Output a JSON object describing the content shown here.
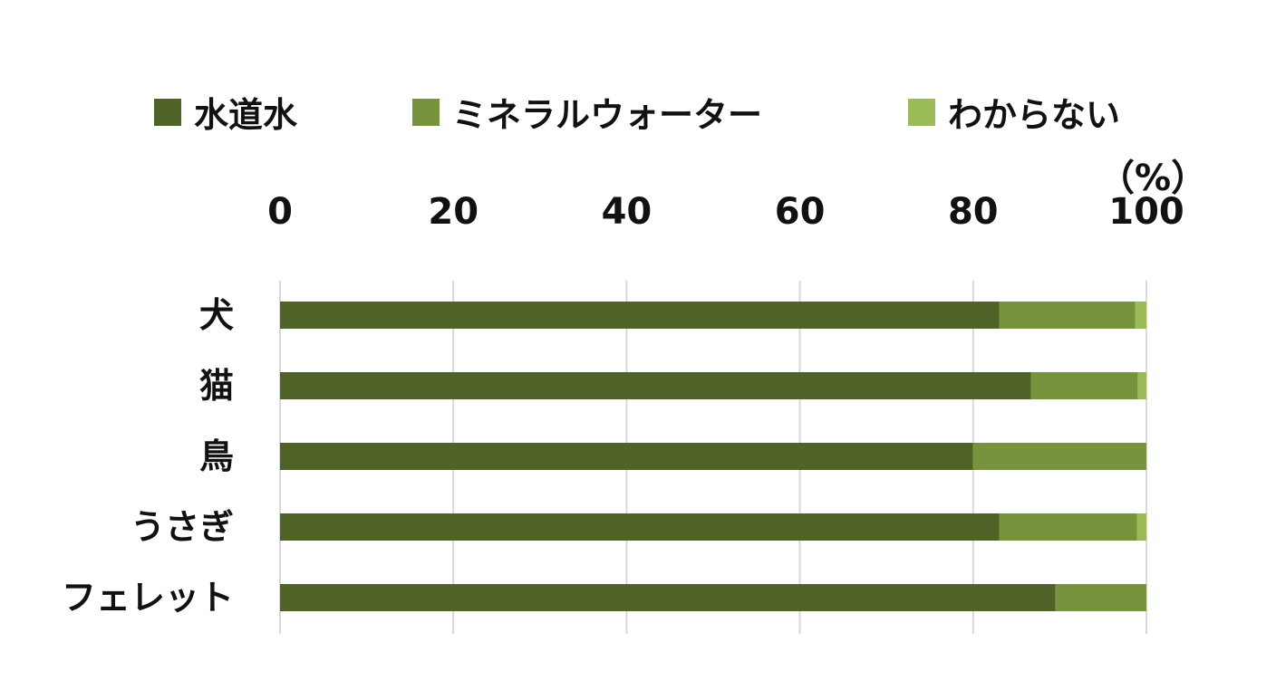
{
  "legend": [
    {
      "label": "水道水",
      "color": "#4f6228"
    },
    {
      "label": "ミネラルウォーター",
      "color": "#77933c"
    },
    {
      "label": "わからない",
      "color": "#9bbb59"
    }
  ],
  "chart_data": {
    "type": "bar",
    "orientation": "horizontal",
    "stacked": true,
    "unit_label": "（%）",
    "categories": [
      "犬",
      "猫",
      "鳥",
      "うさぎ",
      "フェレット"
    ],
    "series": [
      {
        "name": "水道水",
        "color": "#4f6228",
        "values": [
          83.0,
          86.7,
          80.0,
          83.0,
          89.5
        ]
      },
      {
        "name": "ミネラルウォーター",
        "color": "#77933c",
        "values": [
          15.7,
          12.3,
          20.0,
          15.9,
          10.5
        ]
      },
      {
        "name": "わからない",
        "color": "#9bbb59",
        "values": [
          1.3,
          1.0,
          0.0,
          1.1,
          0.0
        ]
      }
    ],
    "x_ticks": [
      "0",
      "20",
      "40",
      "60",
      "80",
      "100"
    ],
    "xlim": [
      0,
      100
    ],
    "x_axis_position": "top",
    "grid": true,
    "legend_position": "top"
  }
}
